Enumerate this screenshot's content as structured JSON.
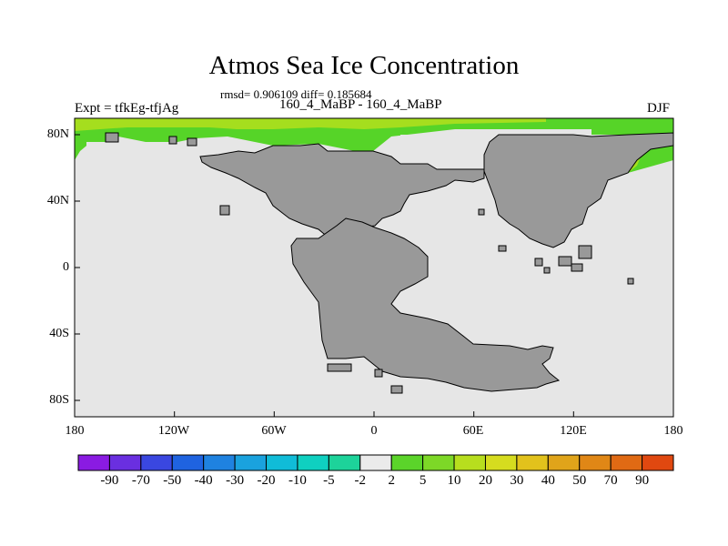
{
  "title": "Atmos Sea Ice Concentration",
  "stats": "rmsd= 0.906109 diff= 0.185684",
  "expt": "Expt = tfkEg-tfjAg",
  "period": "160_4_MaBP - 160_4_MaBP",
  "season": "DJF",
  "colors": {
    "ocean": "#e6e6e6",
    "land": "#999999",
    "coast": "#000000",
    "ice_low": "#56d428",
    "ice_mid": "#a5de1e",
    "ice_high": "#e8c41c"
  },
  "axes": {
    "lat_labels": [
      "80N",
      "40N",
      "0",
      "40S",
      "80S"
    ],
    "lon_labels": [
      "180",
      "120W",
      "60W",
      "0",
      "60E",
      "120E",
      "180"
    ]
  },
  "colorbar": {
    "labels": [
      "-90",
      "-70",
      "-50",
      "-40",
      "-30",
      "-20",
      "-10",
      "-5",
      "-2",
      "2",
      "5",
      "10",
      "20",
      "30",
      "40",
      "50",
      "70",
      "90"
    ],
    "colors": [
      "#8a1be2",
      "#6a2fe0",
      "#3a47e0",
      "#1f63e0",
      "#1f82e0",
      "#1aa2de",
      "#10bcd8",
      "#0fd0c0",
      "#1dd39a",
      "#ebebeb",
      "#5bd42a",
      "#7dd827",
      "#b7de1e",
      "#d6dc1f",
      "#e2c21c",
      "#e0a41a",
      "#e08716",
      "#e06a14",
      "#e04810"
    ]
  }
}
